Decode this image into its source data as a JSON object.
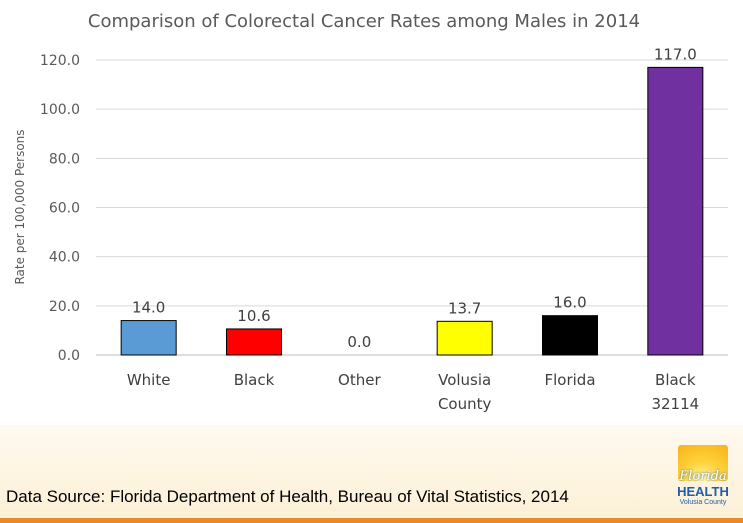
{
  "chart_data": {
    "type": "bar",
    "title": "Comparison of Colorectal Cancer Rates among Males in 2014",
    "xlabel": "",
    "ylabel": "Rate per 100,000 Persons",
    "ylim": [
      0,
      120
    ],
    "yticks": [
      "0.0",
      "20.0",
      "40.0",
      "60.0",
      "80.0",
      "100.0",
      "120.0"
    ],
    "categories": [
      [
        "White"
      ],
      [
        "Black"
      ],
      [
        "Other"
      ],
      [
        "Volusia",
        "County"
      ],
      [
        "Florida"
      ],
      [
        "Black",
        "32114"
      ]
    ],
    "values": [
      14.0,
      10.6,
      0.0,
      13.7,
      16.0,
      117.0
    ],
    "data_labels": [
      "14.0",
      "10.6",
      "0.0",
      "13.7",
      "16.0",
      "117.0"
    ],
    "colors": [
      "#5b9bd5",
      "#ff0000",
      "#a5a5a5",
      "#ffff00",
      "#000000",
      "#7030a0"
    ],
    "grid": true,
    "legend": "none"
  },
  "source": {
    "text": "Data Source: Florida Department of Health, Bureau of Vital Statistics, 2014"
  },
  "logo": {
    "line1": "Florida",
    "line2": "HEALTH",
    "line3": "Volusia County"
  }
}
